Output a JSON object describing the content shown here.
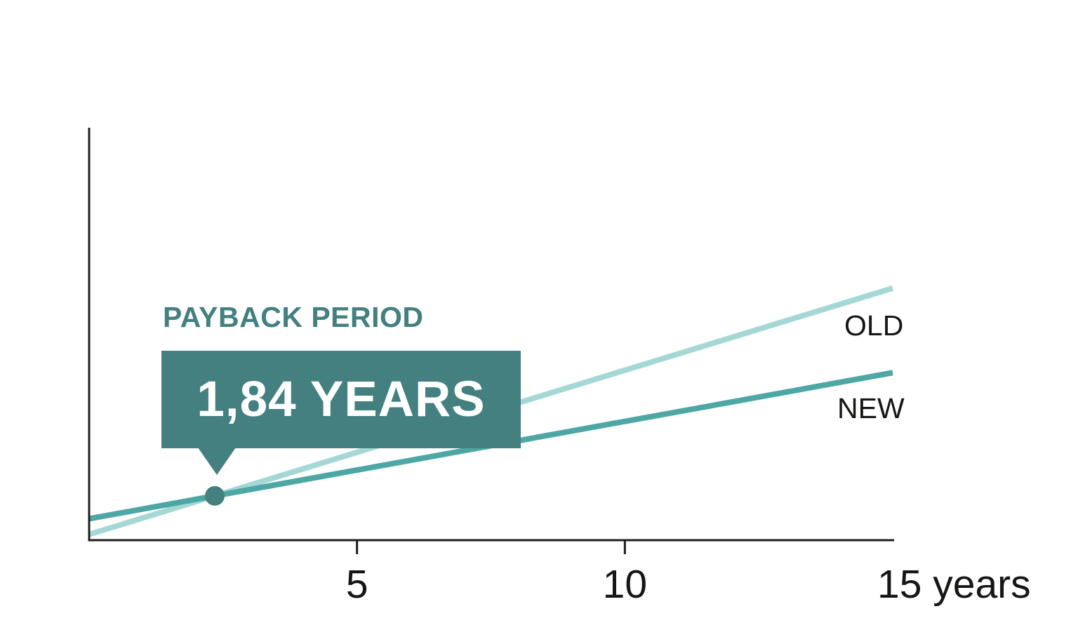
{
  "chart_data": {
    "type": "line",
    "title": "PAYBACK PERIOD",
    "callout": {
      "title": "PAYBACK PERIOD",
      "value": "1,84 YEARS"
    },
    "x_axis": {
      "min": 0,
      "max": 15,
      "unit": "years",
      "ticks": [
        {
          "value": 5,
          "label": "5"
        },
        {
          "value": 10,
          "label": "10"
        }
      ],
      "end_label": {
        "value": 15,
        "label": "15 years"
      }
    },
    "y_axis": {
      "labels_shown": false,
      "scale_note": "normalized 0-1 fraction of plot height (axis unlabeled in figure)"
    },
    "series": [
      {
        "name": "OLD",
        "color": "#a5d8d5",
        "x": [
          0,
          15
        ],
        "y": [
          0.014,
          0.611
        ]
      },
      {
        "name": "NEW",
        "color": "#4da7a4",
        "x": [
          0,
          15
        ],
        "y": [
          0.052,
          0.406
        ]
      }
    ],
    "marker": {
      "type": "intersection-dot",
      "label": "1,84 YEARS",
      "radius_px": 14
    },
    "colors": {
      "accent": "#44807f",
      "axis": "#1d1d1b",
      "label_text": "#161614",
      "callout_text": "#ffffff"
    },
    "grid": false,
    "legend_position": "inline labels at right ends of lines"
  }
}
